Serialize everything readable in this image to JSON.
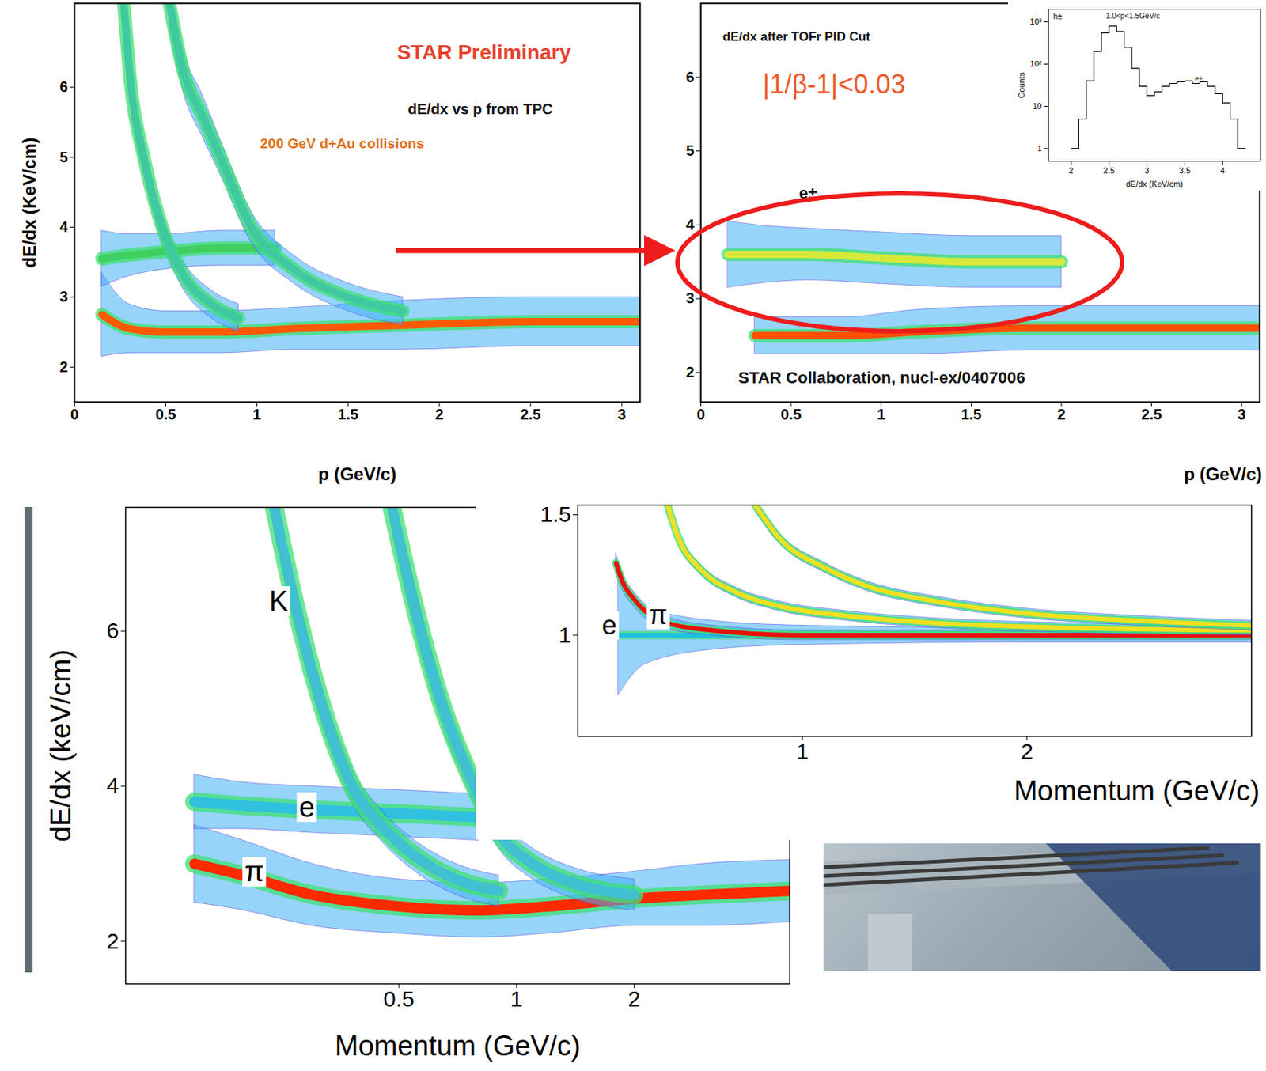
{
  "chart_data": [
    {
      "type": "density",
      "annotations": [
        "STAR Preliminary",
        "dE/dx vs p from TPC",
        "200 GeV d+Au collisions"
      ],
      "x_label": "p (GeV/c)",
      "y_label": "dE/dx (KeV/cm)",
      "xlim": [
        0,
        3.1
      ],
      "ylim": [
        1.5,
        7.2
      ],
      "xticks": [
        0,
        0.5,
        1,
        1.5,
        2,
        2.5,
        3
      ],
      "yticks": [
        2,
        3,
        4,
        5,
        6
      ],
      "bands": [
        {
          "color": "#ff5a00",
          "x": [
            0.15,
            0.3,
            0.5,
            0.8,
            1.2,
            1.8,
            2.5,
            3.1
          ],
          "y": [
            2.75,
            2.55,
            2.5,
            2.5,
            2.55,
            2.6,
            2.65,
            2.65
          ],
          "spread": [
            0.6,
            0.35,
            0.3,
            0.3,
            0.3,
            0.35,
            0.35,
            0.35
          ]
        },
        {
          "color": "#40d060",
          "x": [
            0.15,
            0.3,
            0.5,
            0.8,
            1.1
          ],
          "y": [
            3.55,
            3.6,
            3.65,
            3.7,
            3.7
          ],
          "spread": [
            0.4,
            0.3,
            0.25,
            0.25,
            0.25
          ]
        },
        {
          "color": "#40c8a0",
          "x": [
            0.27,
            0.31,
            0.38,
            0.48,
            0.6,
            0.75,
            0.9
          ],
          "y": [
            7.2,
            6.0,
            5.0,
            4.0,
            3.3,
            2.9,
            2.7
          ],
          "spread": [
            0.35,
            0.3,
            0.25,
            0.2,
            0.2,
            0.2,
            0.2
          ]
        },
        {
          "color": "#40c8a0",
          "x": [
            0.52,
            0.6,
            0.7,
            0.8,
            0.97,
            1.2,
            1.5,
            1.8
          ],
          "y": [
            7.2,
            6.2,
            5.6,
            5.0,
            4.0,
            3.4,
            3.0,
            2.8
          ],
          "spread": [
            0.35,
            0.3,
            0.3,
            0.25,
            0.22,
            0.2,
            0.2,
            0.2
          ]
        }
      ]
    },
    {
      "type": "density",
      "annotations": [
        "dE/dx after TOFr PID Cut",
        "|1/β-1|<0.03",
        "e±",
        "STAR Collaboration, nucl-ex/0407006"
      ],
      "x_label": "p (GeV/c)",
      "xlim": [
        0,
        3.1
      ],
      "ylim": [
        1.6,
        7.0
      ],
      "xticks": [
        0,
        0.5,
        1,
        1.5,
        2,
        2.5,
        3
      ],
      "yticks": [
        2,
        3,
        4,
        5,
        6
      ],
      "bands": [
        {
          "color": "#d8e83a",
          "x": [
            0.15,
            0.3,
            0.6,
            1.0,
            1.5,
            2.0
          ],
          "y": [
            3.6,
            3.6,
            3.6,
            3.55,
            3.5,
            3.5
          ],
          "spread": [
            0.45,
            0.4,
            0.35,
            0.35,
            0.35,
            0.35
          ]
        },
        {
          "color": "#ff5000",
          "x": [
            0.3,
            0.5,
            0.8,
            1.2,
            1.8,
            2.5,
            3.1
          ],
          "y": [
            2.5,
            2.5,
            2.5,
            2.55,
            2.6,
            2.6,
            2.6
          ],
          "spread": [
            0.25,
            0.25,
            0.25,
            0.3,
            0.3,
            0.3,
            0.3
          ]
        }
      ]
    },
    {
      "type": "histogram",
      "log": "y",
      "annotations": [
        "h±",
        "1.0<p<1.5GeV/c",
        "e±"
      ],
      "x_label": "dE/dx (KeV/cm)",
      "y_label": "Counts",
      "xlim": [
        1.7,
        4.5
      ],
      "ylim": [
        0.5,
        2000
      ],
      "xticks": [
        2,
        2.5,
        3,
        3.5,
        4
      ],
      "yticks": [
        1,
        10,
        {
          "value": 100,
          "label": "10²"
        },
        {
          "value": 1000,
          "label": "10³"
        }
      ],
      "bins": [
        2.0,
        2.1,
        2.2,
        2.3,
        2.4,
        2.5,
        2.6,
        2.7,
        2.8,
        2.9,
        3.0,
        3.1,
        3.2,
        3.3,
        3.4,
        3.5,
        3.6,
        3.7,
        3.8,
        3.9,
        4.0,
        4.1,
        4.2,
        4.3
      ],
      "counts": [
        1,
        5,
        40,
        200,
        550,
        800,
        600,
        250,
        80,
        30,
        18,
        22,
        30,
        35,
        38,
        40,
        35,
        38,
        30,
        20,
        12,
        5,
        1
      ]
    },
    {
      "type": "density",
      "log": "x",
      "x_label": "Momentum (GeV/c)",
      "y_label": "dE/dx (keV/cm)",
      "xlim": [
        0.1,
        5
      ],
      "ylim": [
        1.45,
        7.6
      ],
      "xticks": [
        0.5,
        1,
        2
      ],
      "yticks": [
        2,
        4,
        6
      ],
      "bands": [
        {
          "name": "π",
          "color": "#ff2a00",
          "x": [
            0.15,
            0.2,
            0.3,
            0.5,
            0.8,
            1.2,
            2,
            3,
            5
          ],
          "y": [
            3.0,
            2.85,
            2.6,
            2.45,
            2.4,
            2.45,
            2.55,
            2.6,
            2.65
          ],
          "spread": [
            0.5,
            0.45,
            0.4,
            0.35,
            0.35,
            0.35,
            0.35,
            0.4,
            0.4
          ]
        },
        {
          "name": "e",
          "color": "#30c0e0",
          "x": [
            0.15,
            0.2,
            0.3,
            0.5,
            0.8
          ],
          "y": [
            3.8,
            3.75,
            3.7,
            3.65,
            3.6
          ],
          "spread": [
            0.35,
            0.3,
            0.3,
            0.3,
            0.3
          ]
        },
        {
          "name": "K",
          "color": "#40c0d0",
          "x": [
            0.24,
            0.27,
            0.32,
            0.38,
            0.45,
            0.55,
            0.7,
            0.9
          ],
          "y": [
            7.6,
            6.4,
            5.0,
            4.0,
            3.5,
            3.1,
            2.8,
            2.65
          ],
          "spread": [
            0.3,
            0.3,
            0.25,
            0.22,
            0.2,
            0.2,
            0.2,
            0.2
          ]
        },
        {
          "color": "#40c0d0",
          "x": [
            0.48,
            0.55,
            0.65,
            0.75,
            0.9,
            1.1,
            1.4,
            2
          ],
          "y": [
            7.6,
            6.3,
            5.0,
            4.2,
            3.4,
            3.0,
            2.75,
            2.6
          ],
          "spread": [
            0.3,
            0.3,
            0.25,
            0.22,
            0.2,
            0.2,
            0.2,
            0.2
          ]
        }
      ]
    },
    {
      "type": "density",
      "x_label": "Momentum (GeV/c)",
      "xlim": [
        0,
        3
      ],
      "ylim": [
        0.58,
        1.54
      ],
      "xticks": [
        1,
        2
      ],
      "yticks": [
        1,
        1.5
      ],
      "bands": [
        {
          "name": "e",
          "color": "#20c0e0",
          "x": [
            0.18,
            0.3,
            0.6,
            1,
            2,
            3
          ],
          "y": [
            1,
            1,
            1,
            1,
            1,
            1
          ],
          "spread": [
            0.25,
            0.12,
            0.06,
            0.04,
            0.03,
            0.03
          ]
        },
        {
          "name": "π",
          "color": "#e81010",
          "x": [
            0.17,
            0.2,
            0.25,
            0.3,
            0.4,
            0.6,
            1,
            2,
            3
          ],
          "y": [
            1.3,
            1.22,
            1.15,
            1.1,
            1.05,
            1.02,
            1.0,
            1.0,
            1.0
          ],
          "spread": [
            0.04,
            0.035,
            0.03,
            0.03,
            0.025,
            0.02,
            0.02,
            0.02,
            0.02
          ]
        },
        {
          "color": "#f0e020",
          "x": [
            0.4,
            0.45,
            0.55,
            0.7,
            0.9,
            1.2,
            1.6,
            2.2,
            3
          ],
          "y": [
            1.54,
            1.4,
            1.27,
            1.18,
            1.12,
            1.08,
            1.05,
            1.03,
            1.02
          ],
          "spread": [
            0.02,
            0.02,
            0.02,
            0.02,
            0.02,
            0.02,
            0.02,
            0.02,
            0.02
          ]
        },
        {
          "color": "#f0e020",
          "x": [
            0.79,
            0.9,
            1.1,
            1.3,
            1.6,
            2.0,
            2.5,
            3
          ],
          "y": [
            1.54,
            1.4,
            1.28,
            1.2,
            1.14,
            1.09,
            1.06,
            1.04
          ],
          "spread": [
            0.02,
            0.02,
            0.02,
            0.02,
            0.02,
            0.02,
            0.02,
            0.02
          ]
        }
      ]
    }
  ]
}
